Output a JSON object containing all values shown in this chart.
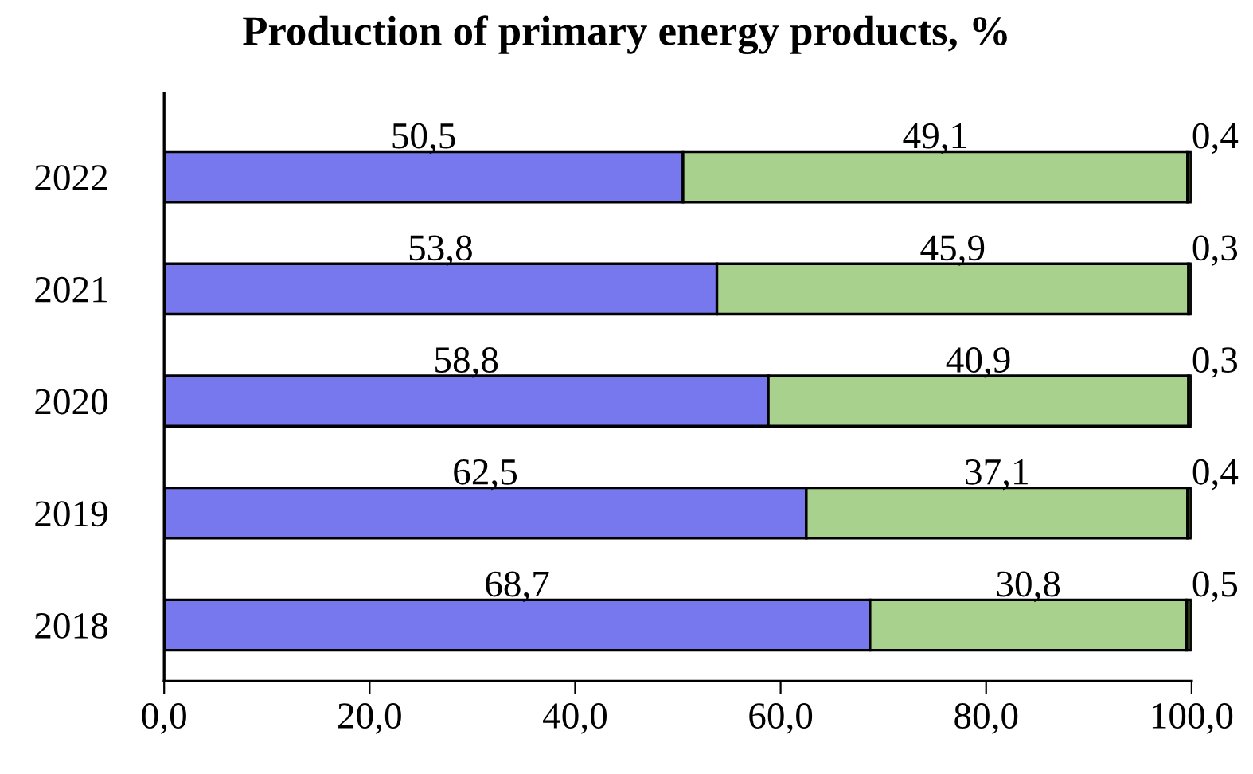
{
  "chart_data": {
    "type": "bar",
    "orientation": "horizontal",
    "stacked": true,
    "title": "Production of primary energy products, %",
    "categories": [
      "2022",
      "2021",
      "2020",
      "2019",
      "2018"
    ],
    "series": [
      {
        "color": "#7777ee",
        "values": [
          50.5,
          53.8,
          58.8,
          62.5,
          68.7
        ],
        "value_labels": [
          "50,5",
          "53,8",
          "58,8",
          "62,5",
          "68,7"
        ]
      },
      {
        "color": "#a9d18e",
        "values": [
          49.1,
          45.9,
          40.9,
          37.1,
          30.8
        ],
        "value_labels": [
          "49,1",
          "45,9",
          "40,9",
          "37,1",
          "30,8"
        ]
      },
      {
        "color": "#2b3a1a",
        "values": [
          0.4,
          0.3,
          0.3,
          0.4,
          0.5
        ],
        "value_labels": [
          "0,4",
          "0,3",
          "0,3",
          "0,4",
          "0,5"
        ]
      }
    ],
    "xlim": [
      0,
      100
    ],
    "xticks": [
      {
        "value": 0,
        "label": "0,0"
      },
      {
        "value": 20,
        "label": "20,0"
      },
      {
        "value": 40,
        "label": "40,0"
      },
      {
        "value": 60,
        "label": "60,0"
      },
      {
        "value": 80,
        "label": "80,0"
      },
      {
        "value": 100,
        "label": "100,0"
      }
    ],
    "grid": false,
    "legend": false
  }
}
